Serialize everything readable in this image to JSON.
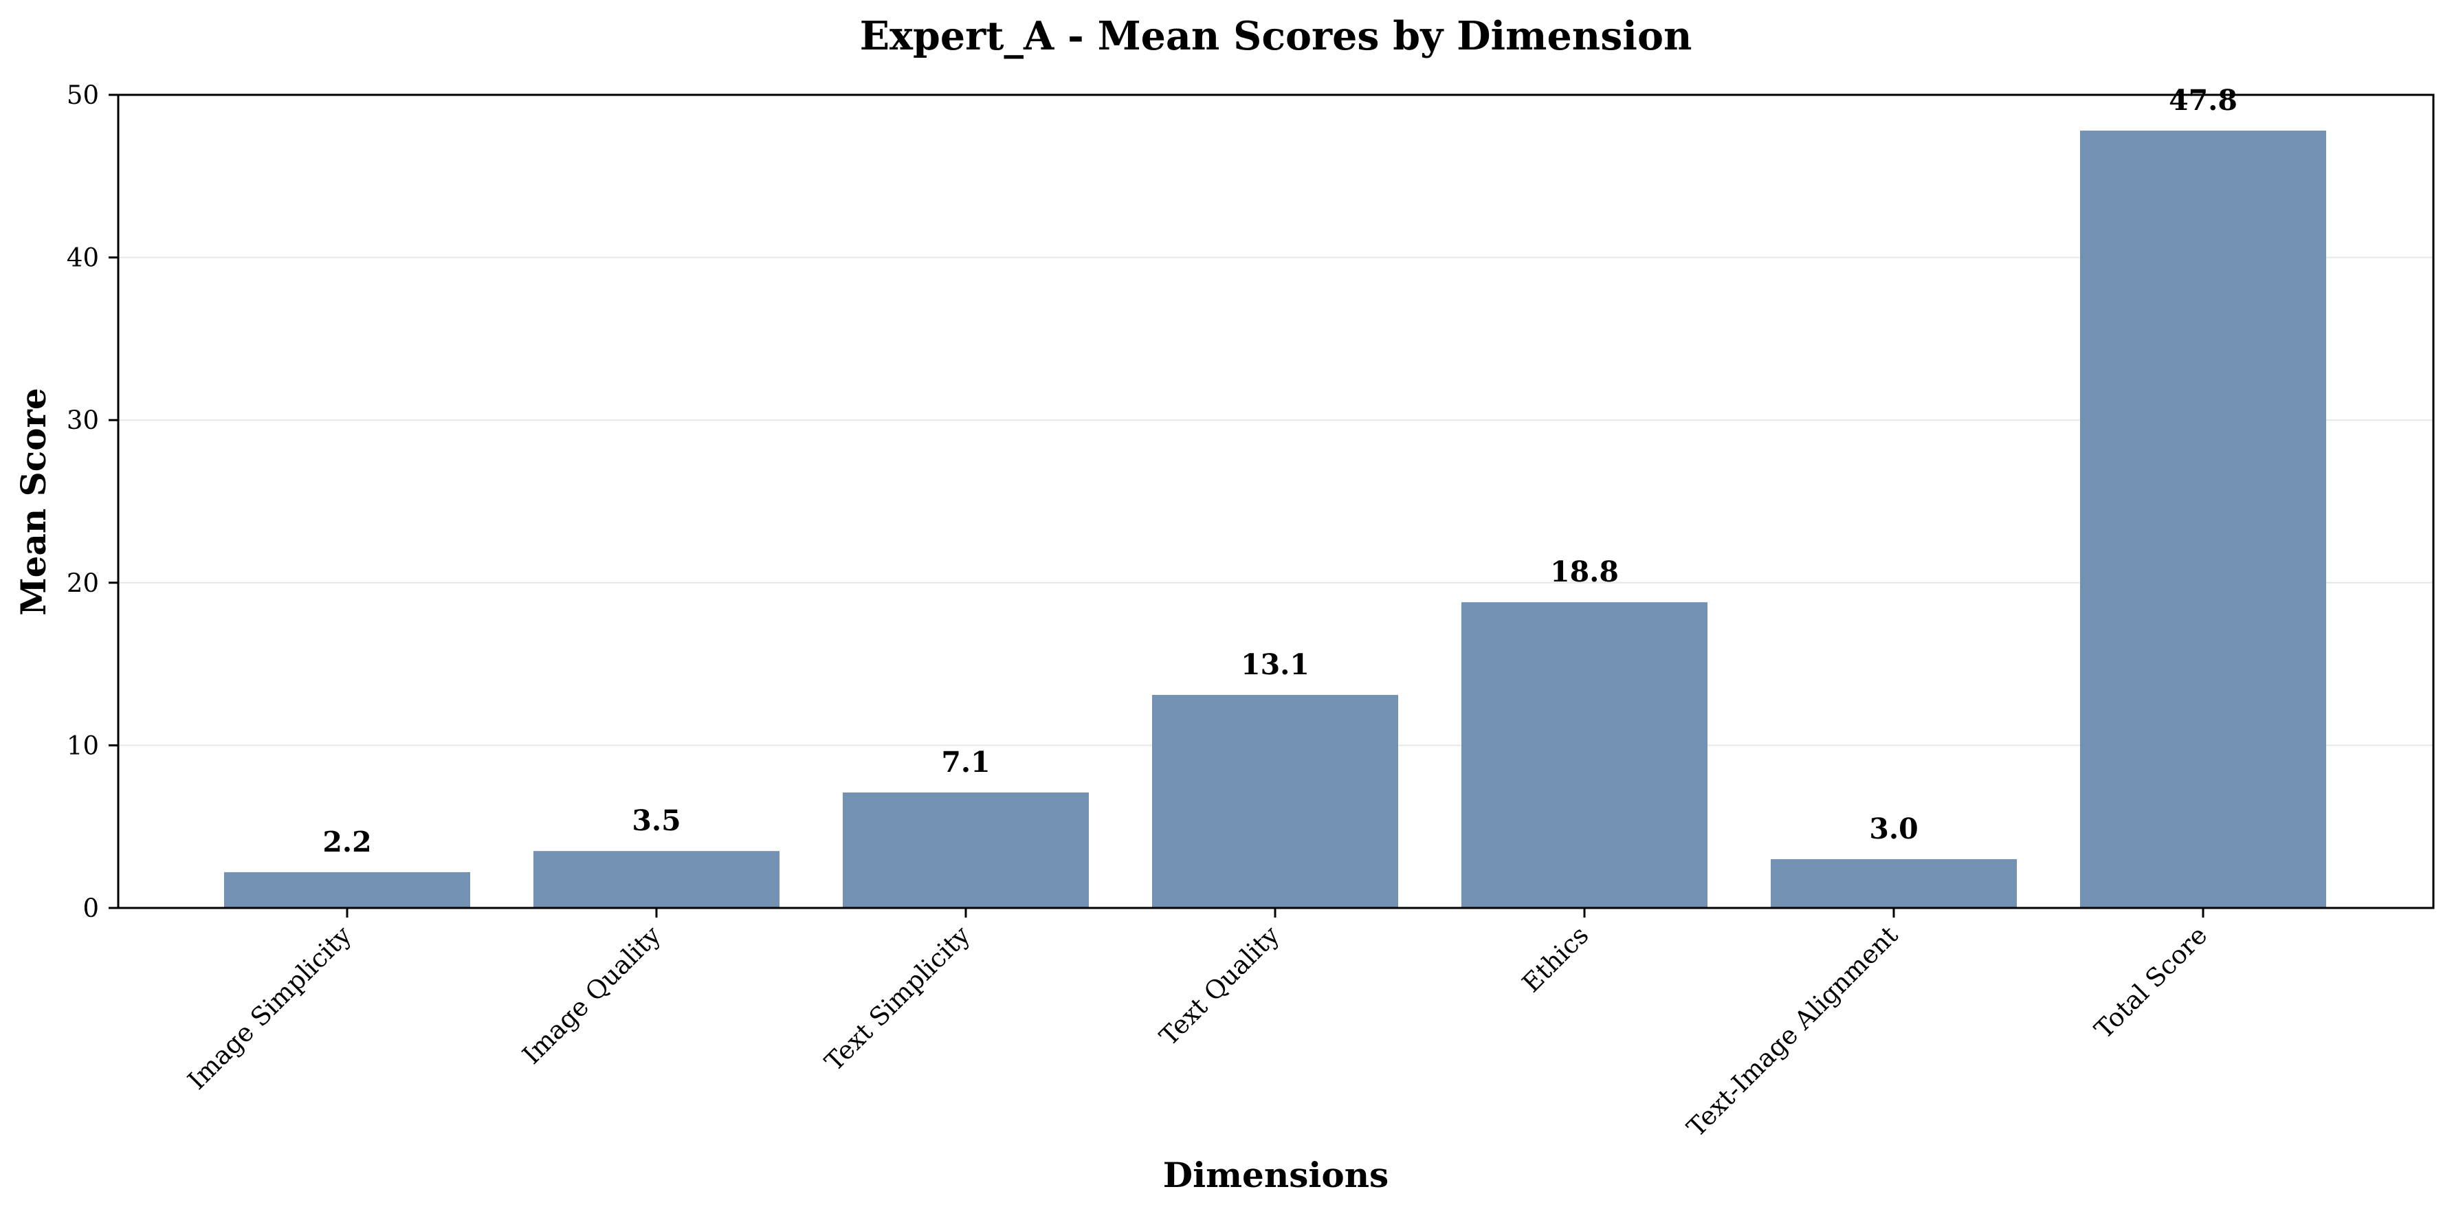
{
  "chart_data": {
    "type": "bar",
    "title": "Expert_A - Mean Scores by Dimension",
    "xlabel": "Dimensions",
    "ylabel": "Mean Score",
    "categories": [
      "Image Simplicity",
      "Image Quality",
      "Text Simplicity",
      "Text Quality",
      "Ethics",
      "Text-Image Alignment",
      "Total Score"
    ],
    "values": [
      2.2,
      3.5,
      7.1,
      13.1,
      18.8,
      3.0,
      47.8
    ],
    "data_labels": [
      "2.2",
      "3.5",
      "7.1",
      "13.1",
      "18.8",
      "3.0",
      "47.8"
    ],
    "ylim": [
      0,
      50
    ],
    "yticks": [
      0,
      10,
      20,
      30,
      40,
      50
    ],
    "grid": "horizontal",
    "legend": "none",
    "colors": {
      "bar": "#7392b3",
      "grid": "#e6e6e6",
      "axis": "#000000"
    }
  }
}
